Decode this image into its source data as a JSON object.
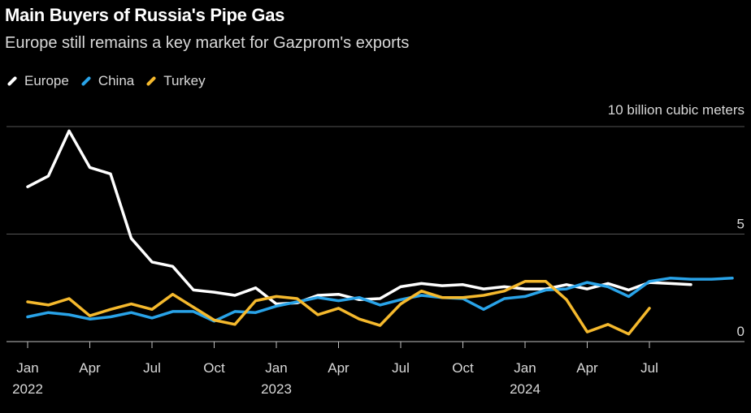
{
  "chart_data": {
    "type": "line",
    "title": "Main Buyers of Russia's Pipe Gas",
    "subtitle": "Europe still remains a key market for Gazprom's exports",
    "unit_label": "10 billion cubic meters",
    "ylim": [
      0,
      10
    ],
    "yticks": [
      0,
      5
    ],
    "x_axis": {
      "ticks": [
        {
          "month": 0,
          "label": "Jan",
          "year": "2022"
        },
        {
          "month": 3,
          "label": "Apr"
        },
        {
          "month": 6,
          "label": "Jul"
        },
        {
          "month": 9,
          "label": "Oct"
        },
        {
          "month": 12,
          "label": "Jan",
          "year": "2023"
        },
        {
          "month": 15,
          "label": "Apr"
        },
        {
          "month": 18,
          "label": "Jul"
        },
        {
          "month": 21,
          "label": "Oct"
        },
        {
          "month": 24,
          "label": "Jan",
          "year": "2024"
        },
        {
          "month": 27,
          "label": "Apr"
        },
        {
          "month": 30,
          "label": "Jul"
        }
      ],
      "xlim": [
        0,
        33
      ]
    },
    "series": [
      {
        "name": "Europe",
        "color": "#ffffff",
        "values": [
          7.2,
          7.7,
          9.8,
          8.1,
          7.8,
          4.8,
          3.7,
          3.5,
          2.4,
          2.3,
          2.15,
          2.5,
          1.75,
          1.8,
          2.15,
          2.2,
          1.95,
          2.0,
          2.55,
          2.7,
          2.6,
          2.65,
          2.45,
          2.55,
          2.45,
          2.45,
          2.65,
          2.45,
          2.7,
          2.4,
          2.75,
          2.7,
          2.65
        ]
      },
      {
        "name": "China",
        "color": "#29a3e8",
        "values": [
          1.15,
          1.35,
          1.25,
          1.05,
          1.15,
          1.35,
          1.1,
          1.4,
          1.4,
          0.95,
          1.4,
          1.35,
          1.65,
          1.85,
          2.05,
          1.9,
          2.05,
          1.7,
          1.95,
          2.15,
          2.05,
          2.0,
          1.5,
          2.0,
          2.1,
          2.4,
          2.45,
          2.75,
          2.55,
          2.1,
          2.8,
          2.95,
          2.9,
          2.9,
          2.95
        ]
      },
      {
        "name": "Turkey",
        "color": "#f5b92d",
        "values": [
          1.85,
          1.7,
          2.0,
          1.2,
          1.5,
          1.75,
          1.5,
          2.2,
          1.6,
          1.0,
          0.8,
          1.9,
          2.1,
          2.0,
          1.25,
          1.55,
          1.05,
          0.75,
          1.75,
          2.35,
          2.05,
          2.05,
          2.15,
          2.35,
          2.8,
          2.8,
          1.95,
          0.45,
          0.8,
          0.35,
          1.55
        ]
      }
    ],
    "legend": "top-left"
  }
}
